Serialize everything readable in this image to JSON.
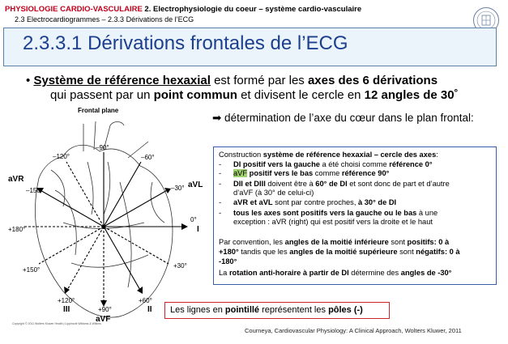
{
  "header": {
    "course": "PHYSIOLOGIE CARDIO-VASCULAIRE",
    "chapter": "2. Electrophysiologie du coeur – système cardio-vasculaire",
    "breadcrumb": "2.3 Electrocardiogrammes – 2.3.3 Dérivations de l’ECG"
  },
  "title": "2.3.3.1 Dérivations frontales de l’ECG",
  "bullet": {
    "symbol": "•",
    "t1": "Système de référence hexaxial",
    "t2": " est formé par les ",
    "t3": "axes des 6 dérivations",
    "t4": "qui passent par un ",
    "t5": "point commun",
    "t6": " et divisent le cercle en ",
    "t7": "12 angles de 30˚"
  },
  "determination": "➡ détermination de l’axe du cœur dans le plan frontal:",
  "box": {
    "l1a": "Construction ",
    "l1b": "système de référence hexaxial – cercle des axes",
    "l1c": ":",
    "dash": "-",
    "l2a": "DI positif vers la gauche",
    "l2b": " a été choisi comme ",
    "l2c": "référence 0°",
    "l3a": "aVF",
    "l3b": " positif vers le bas",
    "l3c": " comme ",
    "l3d": "référence 90°",
    "l4a": "DII et DIII",
    "l4b": " doivent être à ",
    "l4c": "60° de DI",
    "l4d": " et sont donc de part et d’autre",
    "l5": "d’aVF (à 30° de celui-ci)",
    "l6a": "aVR et aVL",
    "l6b": " sont par contre proches, ",
    "l6c": "à 30° de DI",
    "l7a": "tous les axes sont positifs vers la gauche ou le bas",
    "l7b": " à une",
    "l8": "exception : aVR (right) qui est positif vers la droite et le haut",
    "p1a": "Par convention, les ",
    "p1b": "angles de la moitié inférieure",
    "p1c": " sont ",
    "p1d": "positifs: 0 à",
    "p2a": "+180°",
    "p2b": " tandis que les ",
    "p2c": "angles de la moitié supérieure",
    "p2d": " sont ",
    "p2e": "négatifs",
    "p2f": ": 0 à",
    "p3": "-180°",
    "p4a": "La ",
    "p4b": "rotation anti-horaire à partir de DI",
    "p4c": " détermine des ",
    "p4d": "angles de -30°"
  },
  "note": {
    "a": "Les lignes en ",
    "b": "pointillé",
    "c": " représentent les ",
    "d": "pôles (-)"
  },
  "source": "Courneya, Cardiovascular Physiology: A Clinical Approach, Wolters Kluwer, 2011",
  "copyright": "Copyright © 2011 Wolters Kluwer Health | Lippincott Williams & Wilkins",
  "diagram": {
    "caption": "Frontal plane",
    "labels": {
      "aVR": "aVR",
      "aVL": "aVL",
      "aVF": "aVF",
      "DI": "I",
      "DII": "II",
      "DIII": "III",
      "m90": "–90°",
      "m120": "–120°",
      "m60": "–60°",
      "m150": "–150°",
      "m30": "–30°",
      "p180": "+180°",
      "d0": "0°",
      "p150": "+150°",
      "p30": "+30°",
      "p120": "+120°",
      "p60": "+60°",
      "p90": "+90°"
    }
  },
  "colors": {
    "title": "#1d3f8f",
    "course": "#c0001b",
    "note_border": "#d2232a",
    "highlight": "#9fd26e",
    "box_border": "#3b5ca8"
  }
}
